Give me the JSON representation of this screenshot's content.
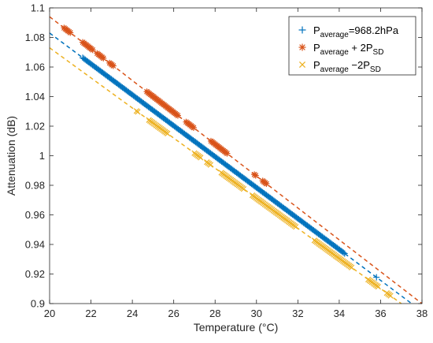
{
  "chart_data": {
    "type": "scatter",
    "xlabel": "Temperature (°C)",
    "ylabel": "Attenuation (dB)",
    "xlim": [
      20,
      38
    ],
    "ylim": [
      0.9,
      1.1
    ],
    "xticks": [
      20,
      22,
      24,
      26,
      28,
      30,
      32,
      34,
      36,
      38
    ],
    "xtick_labels": [
      "20",
      "22",
      "24",
      "26",
      "28",
      "30",
      "32",
      "34",
      "36",
      "38"
    ],
    "yticks": [
      0.9,
      0.92,
      0.94,
      0.96,
      0.98,
      1.0,
      1.02,
      1.04,
      1.06,
      1.08,
      1.1
    ],
    "ytick_labels": [
      "0.9",
      "0.92",
      "0.94",
      "0.96",
      "0.98",
      "1",
      "1.02",
      "1.04",
      "1.06",
      "1.08",
      "1.1"
    ],
    "grid": false,
    "legend_position": "top-right",
    "series": [
      {
        "legend_main": "P",
        "legend_sub": "average",
        "legend_rest": "=968.2hPa",
        "legend_rest_sub": "",
        "marker": "plus",
        "color": "#0072BD",
        "fit_line": [
          [
            20.0,
            1.083
          ],
          [
            37.5,
            0.9
          ]
        ],
        "x_ranges": [
          [
            21.6,
            34.3
          ]
        ],
        "isolated_x": [
          35.8
        ]
      },
      {
        "legend_main": "P",
        "legend_sub": "average",
        "legend_rest": " + 2P",
        "legend_rest_sub": "SD",
        "marker": "asterisk",
        "color": "#D95319",
        "fit_line": [
          [
            20.0,
            1.094
          ],
          [
            38.0,
            0.9
          ]
        ],
        "x_ranges": [
          [
            20.7,
            21.0
          ],
          [
            21.6,
            22.1
          ],
          [
            22.3,
            22.6
          ],
          [
            22.9,
            23.1
          ],
          [
            24.7,
            25.0
          ],
          [
            25.0,
            26.2
          ],
          [
            26.6,
            27.0
          ],
          [
            27.8,
            28.6
          ],
          [
            29.9,
            30.0
          ],
          [
            30.3,
            30.5
          ]
        ],
        "isolated_x": []
      },
      {
        "legend_main": "P",
        "legend_sub": "average",
        "legend_rest": " −2P",
        "legend_rest_sub": "SD",
        "marker": "cross",
        "color": "#EDB120",
        "fit_line": [
          [
            20.0,
            1.073
          ],
          [
            37.0,
            0.9
          ]
        ],
        "x_ranges": [
          [
            24.2,
            24.3
          ],
          [
            24.8,
            25.7
          ],
          [
            27.0,
            27.3
          ],
          [
            27.6,
            27.8
          ],
          [
            28.3,
            29.4
          ],
          [
            29.8,
            31.9
          ],
          [
            32.8,
            34.6
          ],
          [
            35.4,
            35.9
          ],
          [
            36.3,
            36.5
          ]
        ],
        "isolated_x": []
      }
    ]
  }
}
